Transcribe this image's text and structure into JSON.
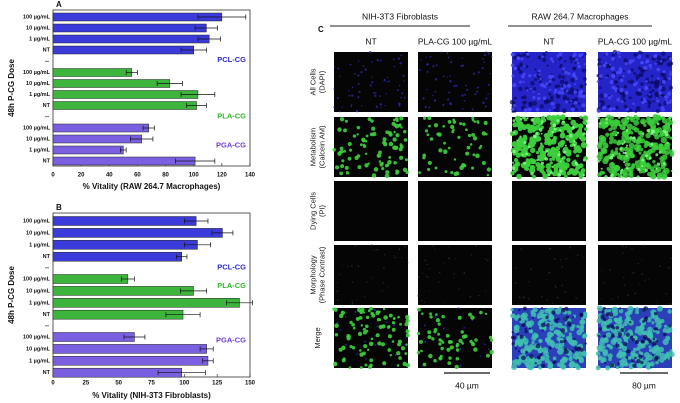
{
  "chart_data": [
    {
      "type": "bar",
      "orientation": "horizontal",
      "panel": "A",
      "ylabel": "48h P-CG Dose",
      "xlabel": "% Vitality (RAW 264.7 Macrophages)",
      "categories": [
        "100 µg/mL",
        "10 µg/mL",
        "1 µg/mL",
        "NT"
      ],
      "series": [
        {
          "name": "PCL-CG",
          "color": "#3b3bdc",
          "label_color": "#2d2dc8",
          "values": [
            120,
            109,
            111,
            100
          ],
          "errors": [
            17,
            8,
            8,
            9
          ]
        },
        {
          "name": "PLA-CG",
          "color": "#3db53d",
          "label_color": "#2fb82f",
          "values": [
            56,
            83,
            103,
            102
          ],
          "errors": [
            4,
            9,
            12,
            7
          ]
        },
        {
          "name": "PGA-CG",
          "color": "#7a5fe0",
          "label_color": "#7040d0",
          "values": [
            68,
            63,
            50,
            101
          ],
          "errors": [
            4,
            8,
            2,
            14
          ]
        }
      ],
      "xlim": [
        0,
        140
      ],
      "xticks": [
        0,
        20,
        40,
        60,
        80,
        100,
        120,
        140
      ]
    },
    {
      "type": "bar",
      "orientation": "horizontal",
      "panel": "B",
      "ylabel": "48h P-CG Dose",
      "xlabel": "% Vitality (NIH-3T3 Fibroblasts)",
      "categories": [
        "100 µg/mL",
        "10 µg/mL",
        "1 µg/mL",
        "NT"
      ],
      "series": [
        {
          "name": "PCL-CG",
          "color": "#3b3bdc",
          "label_color": "#2d2dc8",
          "values": [
            109,
            129,
            110,
            98
          ],
          "errors": [
            9,
            8,
            10,
            4
          ]
        },
        {
          "name": "PLA-CG",
          "color": "#3db53d",
          "label_color": "#2fb82f",
          "values": [
            57,
            107,
            142,
            99
          ],
          "errors": [
            5,
            10,
            10,
            13
          ]
        },
        {
          "name": "PGA-CG",
          "color": "#7a5fe0",
          "label_color": "#7040d0",
          "values": [
            62,
            117,
            118,
            98
          ],
          "errors": [
            8,
            5,
            4,
            18
          ]
        }
      ],
      "xlim": [
        0,
        150
      ],
      "xticks": [
        0,
        25,
        50,
        75,
        100,
        125,
        150
      ]
    }
  ],
  "panel_c": {
    "panel": "C",
    "groups": [
      "NIH-3T3 Fibroblasts",
      "RAW 264.7 Macrophages"
    ],
    "columns": [
      "NT",
      "PLA-CG 100 µg/mL",
      "NT",
      "PLA-CG 100 µg/mL"
    ],
    "rows": [
      [
        "All Cells",
        "(DAPI)"
      ],
      [
        "Metabolism",
        "(Calcein AM)"
      ],
      [
        "Dying Cells",
        "(PI)"
      ],
      [
        "Morphology",
        "(Phase Contrast)"
      ],
      [
        "Merge"
      ]
    ],
    "scale_bars": [
      "40 µm",
      "80 µm"
    ]
  }
}
